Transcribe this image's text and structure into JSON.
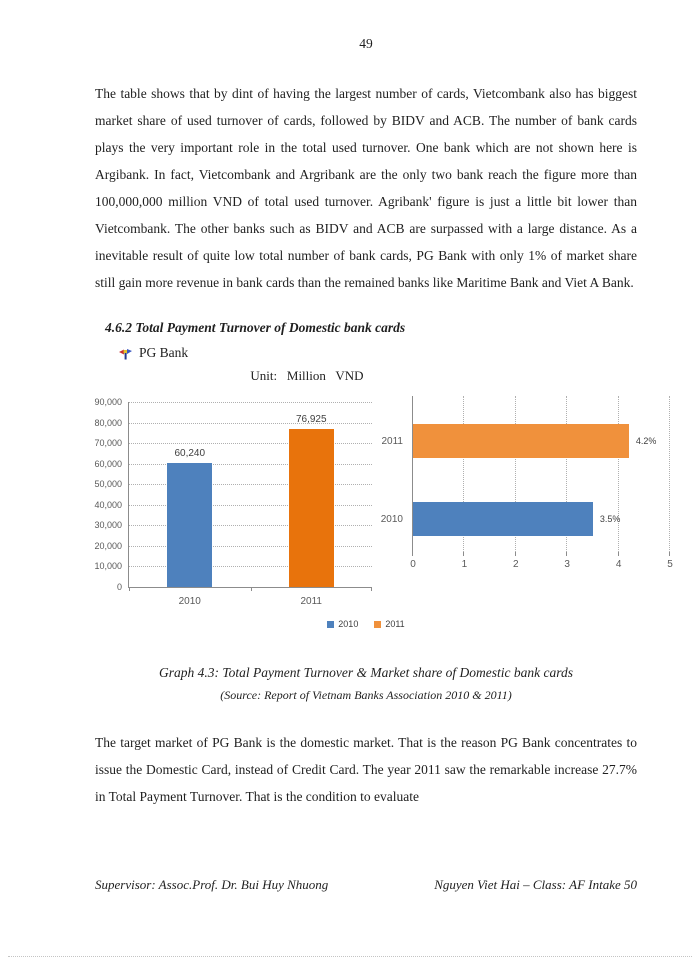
{
  "page": {
    "number": "49"
  },
  "paragraphs": {
    "top": "The table shows that by dint of having the largest number of cards, Vietcombank also has biggest market share of used turnover of cards, followed by BIDV and ACB. The number of bank cards plays the very important role in the total used turnover. One bank which are not shown here is Argibank. In fact, Vietcombank and Argribank are the only two bank reach the figure more than 100,000,000 million VND of total used turnover. Agribank' figure is just a little bit lower than Vietcombank. The other banks such as BIDV and ACB are surpassed with a large distance. As a inevitable result of quite low total number of bank cards, PG Bank with only 1% of market share still gain more revenue in bank cards than the remained banks like Maritime Bank and Viet A Bank.",
    "bottom": "The target market of PG Bank is the domestic market. That is the reason PG Bank concentrates to issue the Domestic Card, instead of Credit Card. The year 2011 saw the remarkable increase 27.7% in Total Payment Turnover. That is the condition to evaluate"
  },
  "section": {
    "heading": "4.6.2 Total Payment Turnover of Domestic bank cards",
    "bullet_label": "PG Bank",
    "unit_label": "Unit:   Million   VND"
  },
  "chart_data": [
    {
      "type": "bar",
      "title": "Total Payment Turnover (Million VND)",
      "categories": [
        "2010",
        "2011"
      ],
      "values": [
        60240,
        76925
      ],
      "labels": [
        "60,240",
        "76,925"
      ],
      "ylim": [
        0,
        90000
      ],
      "ytick_step": 10000,
      "grid": true,
      "colors": [
        "#4E81BD",
        "#E8730C"
      ]
    },
    {
      "type": "bar-horizontal",
      "title": "Market share of Domestic bank cards (%)",
      "categories": [
        "2011",
        "2010"
      ],
      "values": [
        4.2,
        3.5
      ],
      "labels": [
        "4.2%",
        "3.5%"
      ],
      "xlim": [
        0,
        5
      ],
      "xticks": [
        0,
        1,
        2,
        3,
        4,
        5
      ],
      "grid": true,
      "colors": [
        "#F0913C",
        "#4E81BD"
      ]
    }
  ],
  "legend": [
    {
      "label": "2010",
      "color": "#4E81BD"
    },
    {
      "label": "2011",
      "color": "#F0913C"
    }
  ],
  "caption": {
    "title": "Graph 4.3: Total Payment Turnover & Market share of Domestic bank cards",
    "source": "(Source: Report of Vietnam Banks Association 2010 & 2011)"
  },
  "footer": {
    "left": "Supervisor: Assoc.Prof. Dr. Bui Huy Nhuong",
    "right": "Nguyen Viet Hai – Class: AF Intake 50"
  }
}
